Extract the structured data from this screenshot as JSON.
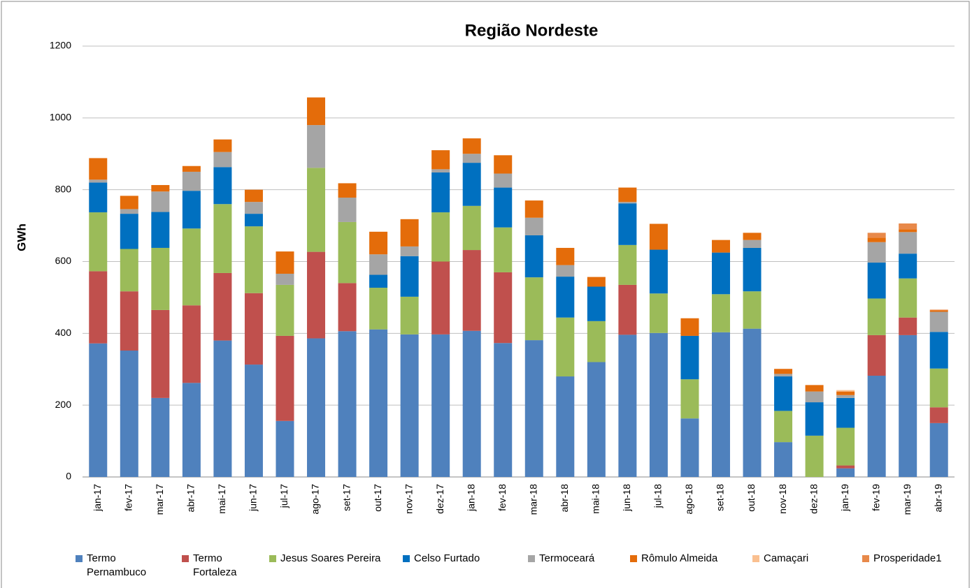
{
  "chart_data": {
    "type": "stacked_bar",
    "title": "Região Nordeste",
    "y_label": "GWh",
    "categories": [
      "jan-17",
      "fev-17",
      "mar-17",
      "abr-17",
      "mai-17",
      "jun-17",
      "jul-17",
      "ago-17",
      "set-17",
      "out-17",
      "nov-17",
      "dez-17",
      "jan-18",
      "fev-18",
      "mar-18",
      "abr-18",
      "mai-18",
      "jun-18",
      "jul-18",
      "ago-18",
      "set-18",
      "out-18",
      "nov-18",
      "dez-18",
      "jan-19",
      "fev-19",
      "mar-19",
      "abr-19"
    ],
    "series": [
      {
        "name": "Termo Pernambuco",
        "color": "#4f81bd",
        "values": [
          372,
          352,
          220,
          262,
          380,
          313,
          156,
          386,
          406,
          411,
          397,
          397,
          407,
          373,
          381,
          280,
          320,
          396,
          401,
          163,
          403,
          413,
          97,
          0,
          24,
          282,
          395,
          150
        ]
      },
      {
        "name": "Termo Fortaleza",
        "color": "#c0504d",
        "values": [
          201,
          165,
          245,
          216,
          188,
          199,
          237,
          241,
          134,
          0,
          0,
          203,
          225,
          197,
          0,
          0,
          0,
          139,
          0,
          0,
          0,
          0,
          0,
          0,
          8,
          113,
          49,
          44
        ]
      },
      {
        "name": "Jesus Soares Pereira",
        "color": "#9bbb59",
        "values": [
          164,
          118,
          173,
          214,
          192,
          186,
          142,
          234,
          170,
          116,
          105,
          137,
          123,
          125,
          175,
          164,
          114,
          111,
          110,
          109,
          106,
          104,
          87,
          115,
          105,
          102,
          109,
          108
        ]
      },
      {
        "name": "Celso Furtado",
        "color": "#0070c0",
        "values": [
          83,
          98,
          100,
          105,
          103,
          35,
          0,
          0,
          0,
          36,
          113,
          111,
          120,
          111,
          117,
          114,
          96,
          116,
          122,
          121,
          116,
          121,
          96,
          93,
          83,
          100,
          69,
          102
        ]
      },
      {
        "name": "Termoceará",
        "color": "#a5a5a5",
        "values": [
          8,
          13,
          57,
          53,
          42,
          33,
          31,
          119,
          68,
          57,
          27,
          9,
          25,
          39,
          49,
          32,
          0,
          4,
          0,
          0,
          0,
          22,
          7,
          30,
          8,
          57,
          60,
          56
        ]
      },
      {
        "name": "Rômulo Almeida",
        "color": "#e46c0a",
        "values": [
          60,
          37,
          18,
          16,
          35,
          34,
          62,
          77,
          40,
          63,
          76,
          53,
          43,
          51,
          48,
          48,
          27,
          40,
          72,
          49,
          35,
          20,
          14,
          18,
          10,
          12,
          8,
          4
        ]
      },
      {
        "name": "Camaçari",
        "color": "#fac090",
        "values": [
          0,
          0,
          0,
          0,
          0,
          0,
          0,
          0,
          0,
          0,
          0,
          0,
          0,
          0,
          0,
          0,
          0,
          0,
          0,
          0,
          0,
          0,
          0,
          0,
          4,
          0,
          0,
          0
        ]
      },
      {
        "name": "Prosperidade1",
        "color": "#e8894a",
        "values": [
          0,
          0,
          0,
          0,
          0,
          0,
          0,
          0,
          0,
          0,
          0,
          0,
          0,
          0,
          0,
          0,
          0,
          0,
          0,
          0,
          0,
          0,
          0,
          0,
          0,
          14,
          16,
          2
        ]
      }
    ],
    "ylim": [
      0,
      1200
    ],
    "yticks": [
      0,
      200,
      400,
      600,
      800,
      1000,
      1200
    ],
    "grid": true,
    "legend": "bottom"
  }
}
